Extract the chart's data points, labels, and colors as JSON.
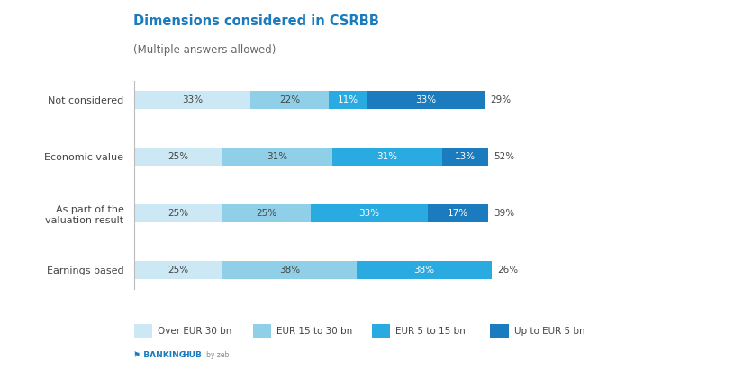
{
  "title": "Dimensions considered in CSRBB",
  "subtitle": "(Multiple answers allowed)",
  "categories": [
    "Not considered",
    "Economic value",
    "As part of the\nvaluation result",
    "Earnings based"
  ],
  "series": [
    {
      "name": "Over EUR 30 bn",
      "color": "#cce8f4",
      "values": [
        33,
        25,
        25,
        25
      ],
      "label_color": "#444444"
    },
    {
      "name": "EUR 15 to 30 bn",
      "color": "#90cfe8",
      "values": [
        22,
        31,
        25,
        38
      ],
      "label_color": "#444444"
    },
    {
      "name": "EUR 5 to 15 bn",
      "color": "#29abe2",
      "values": [
        11,
        31,
        33,
        38
      ],
      "label_color": "#ffffff"
    },
    {
      "name": "Up to EUR 5 bn",
      "color": "#1a7bbf",
      "values": [
        33,
        13,
        17,
        0
      ],
      "label_color": "#ffffff"
    }
  ],
  "outside_labels": [
    "29%",
    "52%",
    "39%",
    "26%"
  ],
  "background_color": "#ffffff",
  "title_color": "#1a7bbf",
  "bar_height": 0.32,
  "xlim": 130,
  "footer_text": "BANKING HUB",
  "footer_text2": " by zeb"
}
